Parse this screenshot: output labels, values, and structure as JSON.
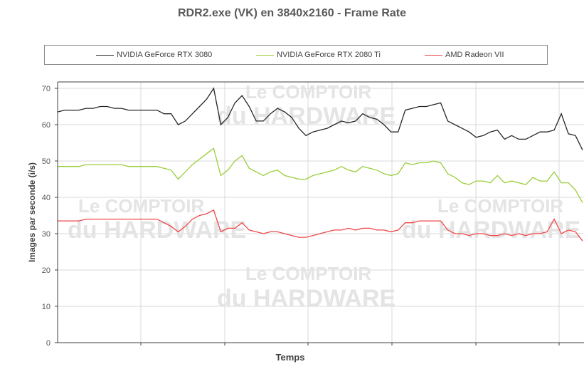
{
  "chart_data": {
    "type": "line",
    "title": "RDR2.exe (VK) en 3840x2160 - Frame Rate",
    "xlabel": "Temps",
    "ylabel": "Images par seconde (i/s)",
    "ylim": [
      0,
      70
    ],
    "yticks": [
      0,
      10,
      20,
      30,
      40,
      50,
      60,
      70
    ],
    "grid": true,
    "legend_position": "top",
    "watermark": [
      "Le COMPTOIR",
      "du HARDWARE"
    ],
    "series": [
      {
        "name": "NVIDIA GeForce RTX 3080",
        "color": "#262626",
        "values": [
          63.5,
          64,
          64,
          64,
          64.5,
          64.5,
          65,
          65,
          64.5,
          64.5,
          64,
          64,
          64,
          64,
          64,
          63,
          63,
          60,
          61,
          63,
          65,
          67,
          70,
          60,
          62,
          66,
          68,
          65,
          61,
          61,
          63,
          64.5,
          63.5,
          62,
          59,
          57,
          58,
          58.5,
          59,
          60,
          61,
          60.5,
          61,
          63,
          62,
          61.5,
          60,
          58,
          58,
          64,
          64.5,
          65,
          65,
          65.5,
          66,
          61,
          60,
          59,
          58,
          56.5,
          57,
          58,
          58.5,
          56,
          57,
          56,
          56,
          57,
          58,
          58,
          58.5,
          63,
          57.5,
          57,
          53
        ]
      },
      {
        "name": "NVIDIA GeForce RTX 2080 Ti",
        "color": "#9acd3a",
        "values": [
          48.5,
          48.5,
          48.5,
          48.5,
          49,
          49,
          49,
          49,
          49,
          49,
          48.5,
          48.5,
          48.5,
          48.5,
          48.5,
          48,
          47.5,
          45,
          47,
          49,
          50.5,
          52,
          53.5,
          46,
          47.5,
          50,
          51.5,
          48,
          47,
          46,
          47,
          47.5,
          46,
          45.5,
          45,
          45,
          46,
          46.5,
          47,
          47.5,
          48.5,
          47.5,
          47,
          48.5,
          48,
          47.5,
          46.5,
          46,
          46.5,
          49.5,
          49,
          49.5,
          49.5,
          50,
          49.5,
          46.5,
          45.5,
          44,
          43.5,
          44.5,
          44.5,
          44,
          46,
          44,
          44.5,
          44,
          43.5,
          45.5,
          44.5,
          44.5,
          47,
          44,
          44,
          42,
          38.5
        ]
      },
      {
        "name": "AMD Radeon VII",
        "color": "#f04646",
        "values": [
          33.5,
          33.5,
          33.5,
          33.5,
          34,
          34,
          34,
          34,
          34,
          34,
          34,
          34,
          34,
          34,
          34,
          33,
          32,
          30.5,
          32,
          34,
          35,
          35.5,
          36.5,
          30.5,
          31.5,
          31.5,
          33,
          31,
          30.5,
          30,
          30.5,
          30.5,
          30,
          29.5,
          29,
          29,
          29.5,
          30,
          30.5,
          31,
          31,
          31.5,
          31,
          31.5,
          31.5,
          31,
          31,
          30.5,
          31,
          33,
          33,
          33.5,
          33.5,
          33.5,
          33.5,
          31,
          30,
          30,
          29.5,
          30,
          30,
          29.5,
          29.5,
          30,
          29.5,
          30,
          29.5,
          30,
          30,
          30.5,
          34,
          30,
          31,
          30.5,
          28
        ]
      }
    ]
  }
}
